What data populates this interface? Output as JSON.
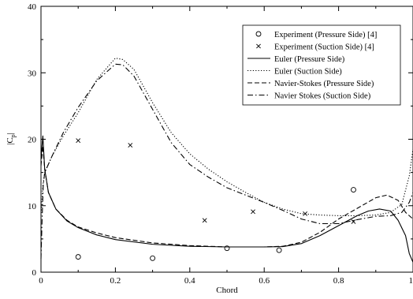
{
  "chart_data": {
    "type": "line",
    "xlabel": "Chord",
    "ylabel": "|C",
    "ylabel_sub": "p",
    "ylabel_end": "|",
    "xlim": [
      0,
      1
    ],
    "ylim": [
      0,
      40
    ],
    "x_ticks": [
      0,
      0.2,
      0.4,
      0.6,
      0.8,
      1
    ],
    "x_tick_labels": [
      "0",
      "0.2",
      "0.4",
      "0.6",
      "0.8",
      "1"
    ],
    "y_ticks": [
      0,
      10,
      20,
      30,
      40
    ],
    "y_tick_labels": [
      "0",
      "10",
      "20",
      "30",
      "40"
    ],
    "grid": false,
    "legend_position": "top-right",
    "series": [
      {
        "name": "Experiment (Pressure Side) [4]",
        "kind": "scatter",
        "marker": "circle",
        "points": [
          [
            0.1,
            2.3
          ],
          [
            0.3,
            2.1
          ],
          [
            0.5,
            3.6
          ],
          [
            0.64,
            3.3
          ],
          [
            0.84,
            12.4
          ]
        ]
      },
      {
        "name": "Experiment (Suction Side) [4]",
        "kind": "scatter",
        "marker": "x",
        "points": [
          [
            0.1,
            19.8
          ],
          [
            0.24,
            19.1
          ],
          [
            0.44,
            7.8
          ],
          [
            0.57,
            9.1
          ],
          [
            0.71,
            8.8
          ],
          [
            0.84,
            7.6
          ]
        ]
      },
      {
        "name": "Euler (Pressure Side)",
        "kind": "line",
        "dash": "solid",
        "points": [
          [
            0,
            17
          ],
          [
            0.005,
            20.5
          ],
          [
            0.01,
            15.5
          ],
          [
            0.02,
            12
          ],
          [
            0.04,
            9.5
          ],
          [
            0.07,
            7.7
          ],
          [
            0.1,
            6.7
          ],
          [
            0.15,
            5.6
          ],
          [
            0.2,
            4.9
          ],
          [
            0.3,
            4.2
          ],
          [
            0.4,
            3.9
          ],
          [
            0.5,
            3.8
          ],
          [
            0.6,
            3.8
          ],
          [
            0.65,
            3.85
          ],
          [
            0.7,
            4.3
          ],
          [
            0.75,
            5.5
          ],
          [
            0.8,
            7.0
          ],
          [
            0.85,
            8.5
          ],
          [
            0.88,
            9.2
          ],
          [
            0.91,
            9.5
          ],
          [
            0.94,
            9.2
          ],
          [
            0.96,
            7.8
          ],
          [
            0.98,
            5.5
          ],
          [
            0.99,
            2.8
          ],
          [
            1.0,
            1.5
          ]
        ]
      },
      {
        "name": "Euler (Suction Side)",
        "kind": "line",
        "dash": "dotted",
        "points": [
          [
            0,
            8.5
          ],
          [
            0.005,
            13
          ],
          [
            0.01,
            15
          ],
          [
            0.03,
            17.5
          ],
          [
            0.06,
            20.5
          ],
          [
            0.1,
            24
          ],
          [
            0.15,
            29
          ],
          [
            0.2,
            32.2
          ],
          [
            0.22,
            32
          ],
          [
            0.25,
            30.5
          ],
          [
            0.3,
            25.5
          ],
          [
            0.35,
            21
          ],
          [
            0.4,
            17.8
          ],
          [
            0.45,
            15.5
          ],
          [
            0.5,
            13.6
          ],
          [
            0.55,
            12
          ],
          [
            0.6,
            10.5
          ],
          [
            0.65,
            9.5
          ],
          [
            0.7,
            8.8
          ],
          [
            0.75,
            8.6
          ],
          [
            0.8,
            8.5
          ],
          [
            0.85,
            8.5
          ],
          [
            0.9,
            8.6
          ],
          [
            0.94,
            9.0
          ],
          [
            0.97,
            10.2
          ],
          [
            0.99,
            14.5
          ],
          [
            1.0,
            18.5
          ]
        ]
      },
      {
        "name": "Navier-Stokes (Pressure Side)",
        "kind": "line",
        "dash": "dashed",
        "points": [
          [
            0,
            16
          ],
          [
            0.005,
            19
          ],
          [
            0.01,
            15.5
          ],
          [
            0.02,
            12
          ],
          [
            0.04,
            9.5
          ],
          [
            0.07,
            7.8
          ],
          [
            0.1,
            6.8
          ],
          [
            0.15,
            5.9
          ],
          [
            0.2,
            5.2
          ],
          [
            0.3,
            4.4
          ],
          [
            0.4,
            4.0
          ],
          [
            0.5,
            3.8
          ],
          [
            0.6,
            3.8
          ],
          [
            0.65,
            3.9
          ],
          [
            0.7,
            4.5
          ],
          [
            0.75,
            6.0
          ],
          [
            0.8,
            8.0
          ],
          [
            0.85,
            9.6
          ],
          [
            0.9,
            11.2
          ],
          [
            0.93,
            11.6
          ],
          [
            0.96,
            10.8
          ],
          [
            0.98,
            9.0
          ],
          [
            1.0,
            8.0
          ]
        ]
      },
      {
        "name": "Navier Stokes (Suction Side)",
        "kind": "line",
        "dash": "dashdot",
        "points": [
          [
            0,
            2
          ],
          [
            0.003,
            8
          ],
          [
            0.006,
            13
          ],
          [
            0.01,
            15
          ],
          [
            0.03,
            17.5
          ],
          [
            0.06,
            21
          ],
          [
            0.1,
            24.8
          ],
          [
            0.15,
            28.8
          ],
          [
            0.2,
            31.3
          ],
          [
            0.22,
            31.2
          ],
          [
            0.25,
            29.5
          ],
          [
            0.3,
            24.5
          ],
          [
            0.35,
            19.5
          ],
          [
            0.4,
            16.2
          ],
          [
            0.45,
            14.3
          ],
          [
            0.5,
            12.7
          ],
          [
            0.55,
            11.6
          ],
          [
            0.6,
            10.5
          ],
          [
            0.65,
            9.3
          ],
          [
            0.7,
            8.0
          ],
          [
            0.75,
            7.3
          ],
          [
            0.8,
            7.3
          ],
          [
            0.85,
            7.9
          ],
          [
            0.9,
            8.4
          ],
          [
            0.94,
            8.5
          ],
          [
            0.97,
            9.0
          ],
          [
            0.99,
            10.5
          ],
          [
            1.0,
            12
          ]
        ]
      }
    ]
  }
}
